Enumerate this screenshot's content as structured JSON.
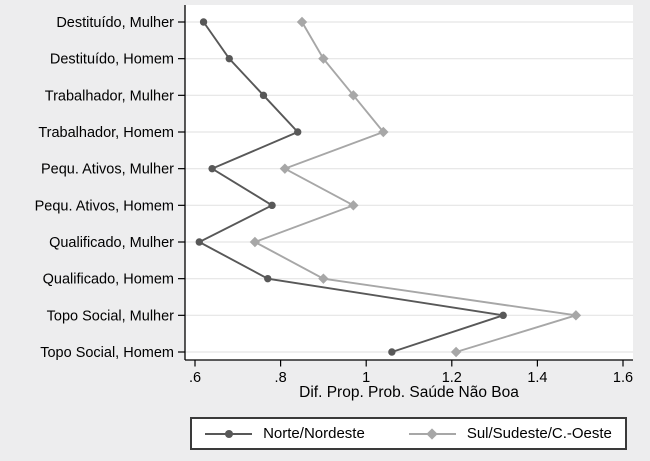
{
  "figure": {
    "background": "#ededee",
    "plot_background": "#ffffff",
    "grid_color": "#e5e5e5",
    "axis_color": "#000000",
    "text_color": "#000000",
    "legend_border_color": "#3a3a3a",
    "legend_background": "#ffffff"
  },
  "chart_data": {
    "type": "line",
    "orientation": "horizontal-categories",
    "title": "",
    "xlabel": "Dif. Prop. Prob. Saúde Não Boa",
    "ylabel": "",
    "xlim": [
      0.58,
      1.62
    ],
    "xticks": [
      0.6,
      0.8,
      1.0,
      1.2,
      1.4,
      1.6
    ],
    "xtick_labels": [
      ".6",
      ".8",
      "1",
      "1.2",
      "1.4",
      "1.6"
    ],
    "grid": "horizontal",
    "legend_position": "bottom",
    "categories": [
      "Destituído, Mulher",
      "Destituído, Homem",
      "Trabalhador, Mulher",
      "Trabalhador, Homem",
      "Pequ. Ativos, Mulher",
      "Pequ. Ativos, Homem",
      "Qualificado, Mulher",
      "Qualificado, Homem",
      "Topo Social, Mulher",
      "Topo Social, Homem"
    ],
    "series": [
      {
        "name": "Norte/Nordeste",
        "marker": "circle",
        "color": "#585858",
        "values": [
          0.62,
          0.68,
          0.76,
          0.84,
          0.64,
          0.78,
          0.61,
          0.77,
          1.32,
          1.06
        ]
      },
      {
        "name": "Sul/Sudeste/C.-Oeste",
        "marker": "diamond",
        "color": "#a7a7a7",
        "values": [
          0.85,
          0.9,
          0.97,
          1.04,
          0.81,
          0.97,
          0.74,
          0.9,
          1.49,
          1.21
        ]
      }
    ]
  }
}
